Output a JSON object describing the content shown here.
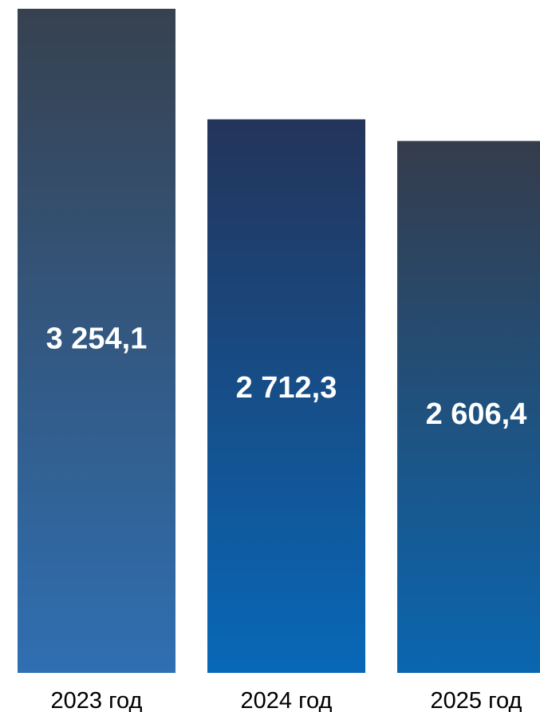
{
  "chart_data": {
    "type": "bar",
    "categories": [
      "2023 год",
      "2024 год",
      "2025 год"
    ],
    "values": [
      3254.1,
      2712.3,
      2606.4
    ],
    "value_labels": [
      "3 254,1",
      "2 712,3",
      "2 606,4"
    ],
    "title": "",
    "xlabel": "",
    "ylabel": "",
    "grid": false,
    "legend": "none",
    "colors": {
      "bar_2023_top": "#374150",
      "bar_2023_bottom": "#2f6fb2",
      "bar_2024_top": "#24345a",
      "bar_2024_bottom": "#0868b8",
      "bar_2025_top": "#353c4b",
      "bar_2025_bottom": "#0a66b0"
    }
  }
}
